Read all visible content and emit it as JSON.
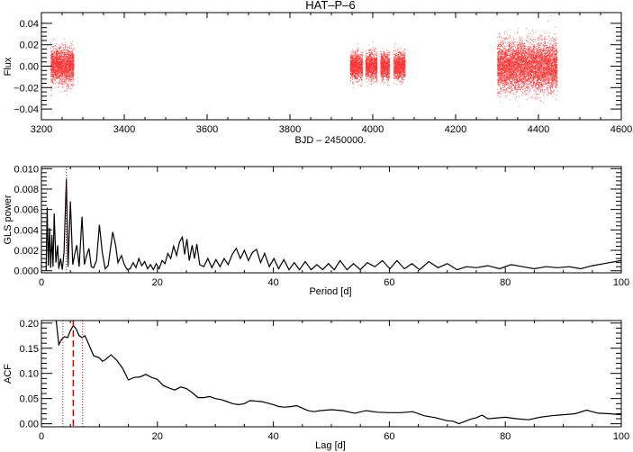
{
  "chart_data": [
    {
      "type": "scatter",
      "title": "HAT–P–6",
      "xlabel": "BJD – 2450000.",
      "ylabel": "Flux",
      "xlim": [
        3200,
        4600
      ],
      "ylim": [
        -0.05,
        0.05
      ],
      "xticks": [
        3200,
        3400,
        3600,
        3800,
        4000,
        4200,
        4400,
        4600
      ],
      "xtick_labels": [
        "3200",
        "3400",
        "3600",
        "3800",
        "4000",
        "4200",
        "4400",
        "4600"
      ],
      "yticks": [
        -0.04,
        -0.02,
        0.0,
        0.02,
        0.04
      ],
      "ytick_labels": [
        "−0.04",
        "−0.02",
        "0.00",
        "0.02",
        "0.04"
      ],
      "color": "#ff0000",
      "segments": [
        {
          "start": 3222,
          "end": 3278,
          "scatter": 0.008
        },
        {
          "start": 3945,
          "end": 3975,
          "scatter": 0.006
        },
        {
          "start": 3982,
          "end": 4010,
          "scatter": 0.006
        },
        {
          "start": 4018,
          "end": 4040,
          "scatter": 0.006
        },
        {
          "start": 4050,
          "end": 4078,
          "scatter": 0.006
        },
        {
          "start": 4300,
          "end": 4445,
          "scatter": 0.011
        }
      ]
    },
    {
      "type": "line",
      "xlabel": "Period [d]",
      "ylabel": "GLS power",
      "xlim": [
        0,
        100
      ],
      "ylim": [
        -0.0002,
        0.0102
      ],
      "xticks": [
        0,
        20,
        40,
        60,
        80,
        100
      ],
      "xtick_labels": [
        "0",
        "20",
        "40",
        "60",
        "80",
        "100"
      ],
      "yticks": [
        0,
        0.002,
        0.004,
        0.006,
        0.008,
        0.01
      ],
      "ytick_labels": [
        "0.000",
        "0.002",
        "0.004",
        "0.006",
        "0.008",
        "0.010"
      ],
      "marker_period": 4.3,
      "marker_color": "#cc0000",
      "points": [
        [
          0.8,
          0
        ],
        [
          1.0,
          0.0062
        ],
        [
          1.2,
          0.0005
        ],
        [
          1.4,
          0.0042
        ],
        [
          1.6,
          0.0003
        ],
        [
          1.8,
          0.0035
        ],
        [
          2.0,
          0.0004
        ],
        [
          2.2,
          0.0056
        ],
        [
          2.5,
          0.0008
        ],
        [
          2.8,
          0.0025
        ],
        [
          3.0,
          0.0002
        ],
        [
          3.3,
          0.0012
        ],
        [
          3.6,
          0.0001
        ],
        [
          3.9,
          0.0018
        ],
        [
          4.3,
          0.009
        ],
        [
          4.6,
          0.0004
        ],
        [
          5.0,
          0.0068
        ],
        [
          5.4,
          0.0006
        ],
        [
          5.8,
          0.0018
        ],
        [
          6.1,
          0.0025
        ],
        [
          6.5,
          0.0004
        ],
        [
          7.0,
          0.0053
        ],
        [
          7.4,
          0.0006
        ],
        [
          7.8,
          0.0015
        ],
        [
          8.2,
          0.0022
        ],
        [
          8.6,
          0.0004
        ],
        [
          9.0,
          0.0003
        ],
        [
          9.5,
          0.001
        ],
        [
          10.0,
          0.0045
        ],
        [
          10.5,
          0.0018
        ],
        [
          11.0,
          0.0002
        ],
        [
          11.5,
          0.0005
        ],
        [
          12.3,
          0.0038
        ],
        [
          12.8,
          0.0025
        ],
        [
          13.2,
          0.0008
        ],
        [
          13.8,
          0.0015
        ],
        [
          14.3,
          0.0006
        ],
        [
          14.8,
          0.0001
        ],
        [
          15.3,
          0.0002
        ],
        [
          15.8,
          0.0008
        ],
        [
          16.3,
          0.0003
        ],
        [
          16.8,
          0.0012
        ],
        [
          17.3,
          0.0005
        ],
        [
          17.8,
          0.0009
        ],
        [
          18.3,
          0.0002
        ],
        [
          18.8,
          0.0006
        ],
        [
          19.3,
          0.0001
        ],
        [
          19.8,
          0.0007
        ],
        [
          20.3,
          0.0002
        ],
        [
          20.8,
          0.001
        ],
        [
          21.3,
          0.0007
        ],
        [
          21.8,
          0.0017
        ],
        [
          22.3,
          0.0012
        ],
        [
          22.8,
          0.0024
        ],
        [
          23.3,
          0.0015
        ],
        [
          23.8,
          0.0028
        ],
        [
          24.3,
          0.0033
        ],
        [
          24.7,
          0.0016
        ],
        [
          25.1,
          0.0031
        ],
        [
          25.5,
          0.001
        ],
        [
          26.0,
          0.0025
        ],
        [
          26.4,
          0.0012
        ],
        [
          26.8,
          0.0026
        ],
        [
          27.3,
          0.0006
        ],
        [
          28.0,
          0.0004
        ],
        [
          28.7,
          0.0012
        ],
        [
          29.4,
          0.0003
        ],
        [
          30.1,
          0.0011
        ],
        [
          30.8,
          0.0004
        ],
        [
          31.5,
          0.0012
        ],
        [
          32.2,
          0.0006
        ],
        [
          32.9,
          0.0016
        ],
        [
          33.6,
          0.0022
        ],
        [
          34.3,
          0.0012
        ],
        [
          35.0,
          0.002
        ],
        [
          35.7,
          0.001
        ],
        [
          36.4,
          0.0018
        ],
        [
          37.1,
          0.0021
        ],
        [
          37.8,
          0.0008
        ],
        [
          38.5,
          0.0017
        ],
        [
          39.3,
          0.0004
        ],
        [
          40.1,
          0.0012
        ],
        [
          40.9,
          0.0002
        ],
        [
          41.8,
          0.0011
        ],
        [
          42.7,
          0.0001
        ],
        [
          43.6,
          0.0008
        ],
        [
          44.5,
          0.0001
        ],
        [
          45.5,
          0.0009
        ],
        [
          46.5,
          0.0001
        ],
        [
          47.5,
          0.0006
        ],
        [
          48.5,
          0.0001
        ],
        [
          49.5,
          0.0007
        ],
        [
          50.5,
          0.0001
        ],
        [
          51.5,
          0.001
        ],
        [
          52.7,
          0.0001
        ],
        [
          53.8,
          0.0007
        ],
        [
          55.0,
          0.0001
        ],
        [
          56.2,
          0.0008
        ],
        [
          57.5,
          0.0004
        ],
        [
          58.8,
          0.001
        ],
        [
          60.1,
          0.0002
        ],
        [
          61.3,
          0.001
        ],
        [
          62.6,
          0.0002
        ],
        [
          63.9,
          0.0007
        ],
        [
          65.2,
          0.0001
        ],
        [
          66.8,
          0.0009
        ],
        [
          68.4,
          0.0003
        ],
        [
          70.0,
          0.0007
        ],
        [
          71.7,
          0.0001
        ],
        [
          73.3,
          0.0004
        ],
        [
          75.0,
          0.0003
        ],
        [
          77.0,
          0.0005
        ],
        [
          79.0,
          0.0002
        ],
        [
          81.0,
          0.0006
        ],
        [
          83.0,
          0.0004
        ],
        [
          85.0,
          0.0002
        ],
        [
          87.0,
          0.0004
        ],
        [
          89.0,
          0.0003
        ],
        [
          91.0,
          0.0004
        ],
        [
          93.0,
          0.0002
        ],
        [
          95.0,
          0.0005
        ],
        [
          97.0,
          0.0007
        ],
        [
          100.0,
          0.001
        ]
      ]
    },
    {
      "type": "line",
      "xlabel": "Lag [d]",
      "ylabel": "ACF",
      "xlim": [
        0,
        100
      ],
      "ylim": [
        -0.006,
        0.205
      ],
      "xticks": [
        0,
        20,
        40,
        60,
        80,
        100
      ],
      "xtick_labels": [
        "0",
        "20",
        "40",
        "60",
        "80",
        "100"
      ],
      "yticks": [
        0,
        0.05,
        0.1,
        0.15,
        0.2
      ],
      "ytick_labels": [
        "0.00",
        "0.05",
        "0.10",
        "0.15",
        "0.20"
      ],
      "peak_lag": 5.5,
      "peak_bounds": [
        3.7,
        7.1
      ],
      "marker_color": "#cc0000",
      "points": [
        [
          2.3,
          0.23
        ],
        [
          2.6,
          0.2
        ],
        [
          3.0,
          0.157
        ],
        [
          3.5,
          0.168
        ],
        [
          4.0,
          0.173
        ],
        [
          4.5,
          0.171
        ],
        [
          5.0,
          0.185
        ],
        [
          5.5,
          0.195
        ],
        [
          6.0,
          0.188
        ],
        [
          6.5,
          0.175
        ],
        [
          7.0,
          0.171
        ],
        [
          7.5,
          0.175
        ],
        [
          8.0,
          0.162
        ],
        [
          9.0,
          0.135
        ],
        [
          10.0,
          0.131
        ],
        [
          10.5,
          0.124
        ],
        [
          11.0,
          0.127
        ],
        [
          12.0,
          0.137
        ],
        [
          13.0,
          0.126
        ],
        [
          14.0,
          0.11
        ],
        [
          15.0,
          0.087
        ],
        [
          16.0,
          0.092
        ],
        [
          17.0,
          0.093
        ],
        [
          18.0,
          0.098
        ],
        [
          19.0,
          0.092
        ],
        [
          20.0,
          0.088
        ],
        [
          21.0,
          0.076
        ],
        [
          22.0,
          0.071
        ],
        [
          23.0,
          0.067
        ],
        [
          24.0,
          0.073
        ],
        [
          25.0,
          0.07
        ],
        [
          26.0,
          0.062
        ],
        [
          27.0,
          0.052
        ],
        [
          28.0,
          0.052
        ],
        [
          29.0,
          0.054
        ],
        [
          30.0,
          0.05
        ],
        [
          31.0,
          0.048
        ],
        [
          32.0,
          0.044
        ],
        [
          33.0,
          0.04
        ],
        [
          34.0,
          0.038
        ],
        [
          35.0,
          0.04
        ],
        [
          36.0,
          0.046
        ],
        [
          37.0,
          0.045
        ],
        [
          38.0,
          0.044
        ],
        [
          39.0,
          0.041
        ],
        [
          40.0,
          0.038
        ],
        [
          41.0,
          0.034
        ],
        [
          42.0,
          0.033
        ],
        [
          43.0,
          0.034
        ],
        [
          44.0,
          0.036
        ],
        [
          45.0,
          0.031
        ],
        [
          46.0,
          0.026
        ],
        [
          47.0,
          0.024
        ],
        [
          48.0,
          0.026
        ],
        [
          50.0,
          0.028
        ],
        [
          52.0,
          0.026
        ],
        [
          54.0,
          0.021
        ],
        [
          56.0,
          0.026
        ],
        [
          58.0,
          0.023
        ],
        [
          60.0,
          0.022
        ],
        [
          62.0,
          0.022
        ],
        [
          64.0,
          0.024
        ],
        [
          66.0,
          0.016
        ],
        [
          68.0,
          0.012
        ],
        [
          70.0,
          0.006
        ],
        [
          71.0,
          0.005
        ],
        [
          72.0,
          0.0
        ],
        [
          74.0,
          0.009
        ],
        [
          75.0,
          0.012
        ],
        [
          76.0,
          0.017
        ],
        [
          77.0,
          0.01
        ],
        [
          78.0,
          0.011
        ],
        [
          80.0,
          0.013
        ],
        [
          82.0,
          0.01
        ],
        [
          84.0,
          0.008
        ],
        [
          86.0,
          0.013
        ],
        [
          88.0,
          0.016
        ],
        [
          90.0,
          0.018
        ],
        [
          92.0,
          0.02
        ],
        [
          94.0,
          0.027
        ],
        [
          96.0,
          0.021
        ],
        [
          98.0,
          0.02
        ],
        [
          100.0,
          0.018
        ]
      ]
    }
  ]
}
